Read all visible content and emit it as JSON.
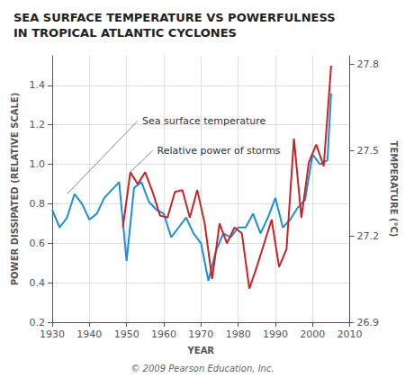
{
  "chart_data": {
    "type": "line",
    "title": "SEA SURFACE TEMPERATURE VS POWERFULNESS\nIN TROPICAL ATLANTIC CYCLONES",
    "xlabel": "YEAR",
    "ylabel": "POWER DISSIPATED (RELATIVE SCALE)",
    "y2label": "TEMPERATURE (°C)",
    "xlim": [
      1930,
      2010
    ],
    "xticks": [
      1930,
      1940,
      1950,
      1960,
      1970,
      1980,
      1990,
      2000,
      2010
    ],
    "ylim": [
      0.2,
      1.55
    ],
    "yticks": [
      0.2,
      0.4,
      0.6,
      0.8,
      {
        "value": 1.0,
        "label": "1.0"
      },
      1.2,
      1.4
    ],
    "y2lim": [
      26.9,
      27.83
    ],
    "y2ticks": [
      26.9,
      27.2,
      27.5,
      27.8
    ],
    "grid": true,
    "series": [
      {
        "color": "#1a8fdd",
        "x": [
          1930,
          1932,
          1934,
          1936,
          1938,
          1940,
          1942,
          1944,
          1946,
          1948,
          1950,
          1952,
          1954,
          1956,
          1958,
          1960,
          1962,
          1964,
          1966,
          1968,
          1970,
          1972,
          1974,
          1976,
          1978,
          1980,
          1982,
          1984,
          1986,
          1988,
          1990,
          1992,
          1994,
          1996,
          1998,
          2000,
          2002,
          2004,
          2005
        ],
        "values": [
          0.77,
          0.68,
          0.73,
          0.85,
          0.8,
          0.72,
          0.75,
          0.83,
          0.87,
          0.91,
          0.51,
          0.88,
          0.91,
          0.81,
          0.77,
          0.75,
          0.63,
          0.68,
          0.73,
          0.65,
          0.6,
          0.41,
          0.56,
          0.65,
          0.63,
          0.68,
          0.68,
          0.75,
          0.65,
          0.73,
          0.83,
          0.68,
          0.72,
          0.78,
          0.82,
          1.05,
          1.0,
          1.02,
          1.36
        ]
      },
      {
        "color": "#cc2222",
        "x": [
          1949,
          1951,
          1953,
          1955,
          1957,
          1959,
          1961,
          1963,
          1965,
          1967,
          1969,
          1971,
          1973,
          1975,
          1977,
          1979,
          1981,
          1983,
          1985,
          1987,
          1989,
          1991,
          1993,
          1995,
          1997,
          1999,
          2001,
          2003,
          2005
        ],
        "values": [
          0.68,
          0.96,
          0.9,
          0.96,
          0.86,
          0.74,
          0.73,
          0.86,
          0.87,
          0.73,
          0.87,
          0.7,
          0.42,
          0.7,
          0.6,
          0.68,
          0.65,
          0.37,
          0.48,
          0.6,
          0.72,
          0.48,
          0.57,
          1.13,
          0.73,
          1.01,
          1.1,
          0.99,
          1.5
        ]
      }
    ],
    "annotations": [
      {
        "text": "Sea surface temperature",
        "xy": [
          1934,
          0.85
        ],
        "xytext": [
          1953,
          1.22
        ]
      },
      {
        "text": "Relative power of storms",
        "xy": [
          1951,
          0.96
        ],
        "xytext": [
          1957,
          1.07
        ]
      }
    ],
    "footnote": "© 2009 Pearson Education, Inc."
  }
}
